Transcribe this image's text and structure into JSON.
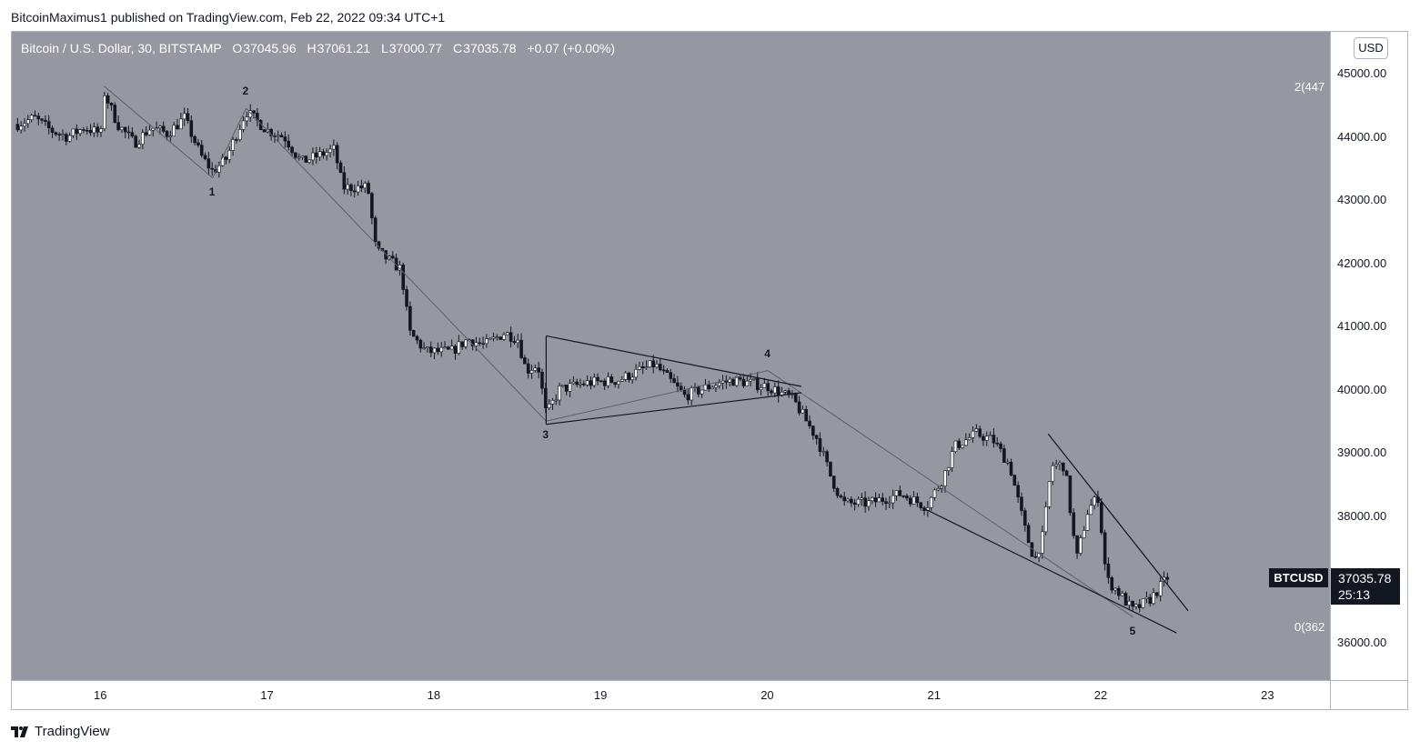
{
  "header": {
    "published_text": "BitcoinMaximus1 published on TradingView.com, Feb 22, 2022 09:34 UTC+1"
  },
  "legend": {
    "symbol_text": "Bitcoin / U.S. Dollar, 30, BITSTAMP",
    "o_label": "O",
    "o_value": "37045.96",
    "h_label": "H",
    "h_value": "37061.21",
    "l_label": "L",
    "l_value": "37000.77",
    "c_label": "C",
    "c_value": "37035.78",
    "change": "+0.07 (+0.00%)"
  },
  "price_axis": {
    "currency": "USD",
    "ticks": [
      "45000.00",
      "44000.00",
      "43000.00",
      "42000.00",
      "41000.00",
      "40000.00",
      "39000.00",
      "38000.00",
      "36000.00"
    ],
    "fib_top_label": "2(447",
    "fib_bottom_label": "0(362"
  },
  "last_price": {
    "symbol": "BTCUSD",
    "price": "37035.78",
    "countdown": "25:13"
  },
  "footer": {
    "brand": "TradingView"
  },
  "colors": {
    "plot_bg": "#9598a1",
    "candle": "#ffffff",
    "line": "#131722"
  },
  "chart_data": {
    "type": "candlestick",
    "title": "Bitcoin / U.S. Dollar, 30, BITSTAMP",
    "interval": "30",
    "exchange": "BITSTAMP",
    "x_ticks": [
      "16",
      "17",
      "18",
      "19",
      "20",
      "21",
      "22",
      "23"
    ],
    "y_ticks": [
      45000,
      44000,
      43000,
      42000,
      41000,
      40000,
      39000,
      38000,
      36000
    ],
    "ylim": [
      35400,
      45800
    ],
    "xlim": [
      15.5,
      23.37
    ],
    "last_close": 37035.78,
    "wave_labels": [
      "1",
      "2",
      "3",
      "4",
      "5"
    ],
    "waves": [
      {
        "label": "1",
        "x": 16.67,
        "y": 43350
      },
      {
        "label": "2",
        "x": 16.87,
        "y": 44450
      },
      {
        "label": "3",
        "x": 18.67,
        "y": 39500
      },
      {
        "label": "4",
        "x": 20.0,
        "y": 40300
      },
      {
        "label": "5",
        "x": 22.19,
        "y": 36400
      }
    ],
    "price_path": [
      {
        "x": 15.5,
        "y": 44200
      },
      {
        "x": 15.6,
        "y": 44300
      },
      {
        "x": 15.7,
        "y": 44100
      },
      {
        "x": 15.8,
        "y": 44000
      },
      {
        "x": 15.9,
        "y": 44150
      },
      {
        "x": 16.0,
        "y": 44050
      },
      {
        "x": 16.02,
        "y": 44700
      },
      {
        "x": 16.1,
        "y": 44200
      },
      {
        "x": 16.2,
        "y": 43900
      },
      {
        "x": 16.3,
        "y": 44150
      },
      {
        "x": 16.4,
        "y": 44050
      },
      {
        "x": 16.5,
        "y": 44300
      },
      {
        "x": 16.6,
        "y": 43700
      },
      {
        "x": 16.67,
        "y": 43450
      },
      {
        "x": 16.75,
        "y": 43650
      },
      {
        "x": 16.87,
        "y": 44400
      },
      {
        "x": 17.0,
        "y": 44100
      },
      {
        "x": 17.1,
        "y": 44000
      },
      {
        "x": 17.2,
        "y": 43600
      },
      {
        "x": 17.3,
        "y": 43700
      },
      {
        "x": 17.4,
        "y": 43800
      },
      {
        "x": 17.45,
        "y": 43200
      },
      {
        "x": 17.6,
        "y": 43200
      },
      {
        "x": 17.65,
        "y": 42200
      },
      {
        "x": 17.8,
        "y": 41900
      },
      {
        "x": 17.85,
        "y": 40900
      },
      {
        "x": 17.95,
        "y": 40600
      },
      {
        "x": 18.0,
        "y": 40600
      },
      {
        "x": 18.1,
        "y": 40600
      },
      {
        "x": 18.2,
        "y": 40800
      },
      {
        "x": 18.3,
        "y": 40700
      },
      {
        "x": 18.42,
        "y": 40900
      },
      {
        "x": 18.5,
        "y": 40800
      },
      {
        "x": 18.55,
        "y": 40300
      },
      {
        "x": 18.62,
        "y": 40400
      },
      {
        "x": 18.67,
        "y": 39600
      },
      {
        "x": 18.75,
        "y": 40000
      },
      {
        "x": 18.9,
        "y": 40100
      },
      {
        "x": 19.1,
        "y": 40150
      },
      {
        "x": 19.32,
        "y": 40400
      },
      {
        "x": 19.5,
        "y": 39900
      },
      {
        "x": 19.7,
        "y": 40100
      },
      {
        "x": 19.8,
        "y": 40150
      },
      {
        "x": 20.0,
        "y": 40050
      },
      {
        "x": 20.15,
        "y": 39850
      },
      {
        "x": 20.3,
        "y": 39200
      },
      {
        "x": 20.38,
        "y": 38600
      },
      {
        "x": 20.45,
        "y": 38200
      },
      {
        "x": 20.6,
        "y": 38200
      },
      {
        "x": 20.8,
        "y": 38350
      },
      {
        "x": 20.95,
        "y": 38150
      },
      {
        "x": 21.05,
        "y": 38600
      },
      {
        "x": 21.12,
        "y": 39100
      },
      {
        "x": 21.25,
        "y": 39300
      },
      {
        "x": 21.35,
        "y": 39200
      },
      {
        "x": 21.45,
        "y": 38800
      },
      {
        "x": 21.55,
        "y": 37700
      },
      {
        "x": 21.6,
        "y": 37300
      },
      {
        "x": 21.65,
        "y": 37700
      },
      {
        "x": 21.7,
        "y": 38800
      },
      {
        "x": 21.78,
        "y": 38800
      },
      {
        "x": 21.85,
        "y": 37300
      },
      {
        "x": 21.92,
        "y": 38100
      },
      {
        "x": 21.98,
        "y": 38300
      },
      {
        "x": 22.03,
        "y": 37000
      },
      {
        "x": 22.1,
        "y": 36800
      },
      {
        "x": 22.19,
        "y": 36500
      },
      {
        "x": 22.3,
        "y": 36700
      },
      {
        "x": 22.4,
        "y": 37040
      }
    ]
  }
}
